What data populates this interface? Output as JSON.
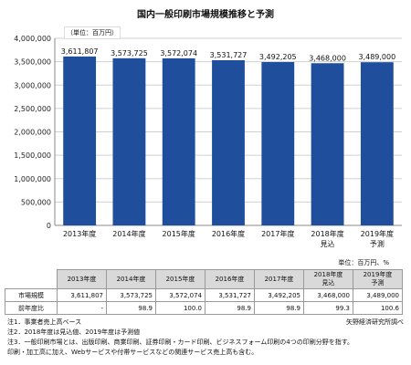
{
  "chart_data": {
    "type": "bar",
    "title": "国内一般印刷市場規模推移と予測",
    "unit_label": "（単位：百万円）",
    "categories": [
      "2013年度",
      "2014年度",
      "2015年度",
      "2016年度",
      "2017年度",
      "2018年度",
      "2019年度"
    ],
    "category_sublabels": [
      "",
      "",
      "",
      "",
      "",
      "見込",
      "予測"
    ],
    "values": [
      3611807,
      3573725,
      3572074,
      3531727,
      3492205,
      3468000,
      3489000
    ],
    "value_labels": [
      "3,611,807",
      "3,573,725",
      "3,572,074",
      "3,531,727",
      "3,492,205",
      "3,468,000",
      "3,489,000"
    ],
    "ylim": [
      0,
      4000000
    ],
    "yticks": [
      0,
      500000,
      1000000,
      1500000,
      2000000,
      2500000,
      3000000,
      3500000,
      4000000
    ],
    "ytick_labels": [
      "0",
      "500,000",
      "1,000,000",
      "1,500,000",
      "2,000,000",
      "2,500,000",
      "3,000,000",
      "3,500,000",
      "4,000,000"
    ],
    "grid": true,
    "bar_color": "#1f4e9d"
  },
  "table": {
    "unit_label": "単位：百万円、%",
    "headers": [
      {
        "line1": "2013年度",
        "line2": ""
      },
      {
        "line1": "2014年度",
        "line2": ""
      },
      {
        "line1": "2015年度",
        "line2": ""
      },
      {
        "line1": "2016年度",
        "line2": ""
      },
      {
        "line1": "2017年度",
        "line2": ""
      },
      {
        "line1": "2018年度",
        "line2": "見込"
      },
      {
        "line1": "2019年度",
        "line2": "予測"
      }
    ],
    "rows": [
      {
        "label": "市場規模",
        "values": [
          "3,611,807",
          "3,573,725",
          "3,572,074",
          "3,531,727",
          "3,492,205",
          "3,468,000",
          "3,489,000"
        ]
      },
      {
        "label": "前年度比",
        "values": [
          "-",
          "98.9",
          "100.0",
          "98.9",
          "98.9",
          "99.3",
          "100.6"
        ]
      }
    ]
  },
  "notes": {
    "lines": [
      "注1．事業者売上高ベース",
      "注2．2018年度は見込値、2019年度は予測値",
      "注3．一般印刷市場とは、出版印刷、商業印刷、証券印刷・カード印刷、ビジネスフォーム印刷の4つの印刷分野を指す。",
      "印刷・加工高に加え、Webサービスや付帯サービスなどの関連サービス売上高も含む。"
    ],
    "source": "矢野経済研究所調べ"
  }
}
